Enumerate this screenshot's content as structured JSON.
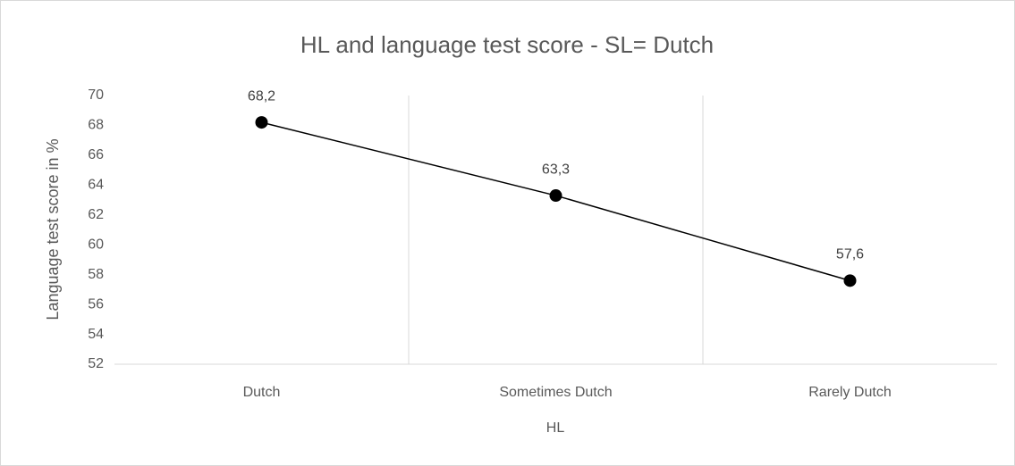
{
  "chart_data": {
    "type": "line",
    "title": "HL and language test score - SL= Dutch",
    "x_label": "HL",
    "y_label": "Language test score in %",
    "categories": [
      "Dutch",
      "Sometimes Dutch",
      "Rarely Dutch"
    ],
    "values": [
      68.2,
      63.3,
      57.6
    ],
    "value_labels": [
      "68,2",
      "63,3",
      "57,6"
    ],
    "color": "#000000",
    "ylim": [
      52,
      70
    ],
    "yticks": [
      52,
      54,
      56,
      58,
      60,
      62,
      64,
      66,
      68,
      70
    ]
  }
}
